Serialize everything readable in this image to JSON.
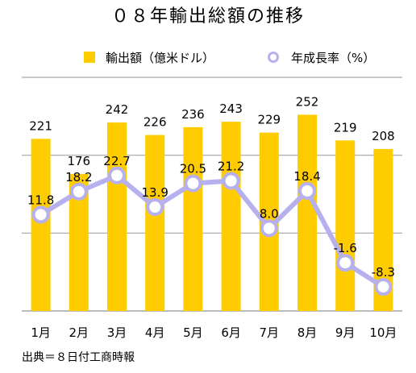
{
  "chart_data": {
    "type": "bar",
    "title": "０８年輸出総額の推移",
    "categories": [
      "1月",
      "2月",
      "3月",
      "4月",
      "5月",
      "6月",
      "7月",
      "8月",
      "9月",
      "10月"
    ],
    "series": [
      {
        "name": "輸出額（億米ドル）",
        "type": "bar",
        "axis": "left",
        "values": [
          221,
          176,
          242,
          226,
          236,
          243,
          229,
          252,
          219,
          208
        ],
        "color": "#ffcc00"
      },
      {
        "name": "年成長率（%）",
        "type": "line",
        "axis": "right",
        "values": [
          11.8,
          18.2,
          22.7,
          13.9,
          20.5,
          21.2,
          8.0,
          18.4,
          -1.6,
          -8.3
        ],
        "color": "#b7b0ee"
      }
    ],
    "value_labels_bar": [
      "221",
      "176",
      "242",
      "226",
      "236",
      "243",
      "229",
      "252",
      "219",
      "208"
    ],
    "value_labels_line": [
      "11.8",
      "18.2",
      "22.7",
      "13.9",
      "20.5",
      "21.2",
      "8.0",
      "18.4",
      "-1.6",
      "-8.3"
    ],
    "ylim_left": [
      0,
      300
    ],
    "ylim_right": [
      -15,
      50
    ],
    "grid": true,
    "legend_position": "top",
    "source": "出典＝８日付工商時報"
  }
}
